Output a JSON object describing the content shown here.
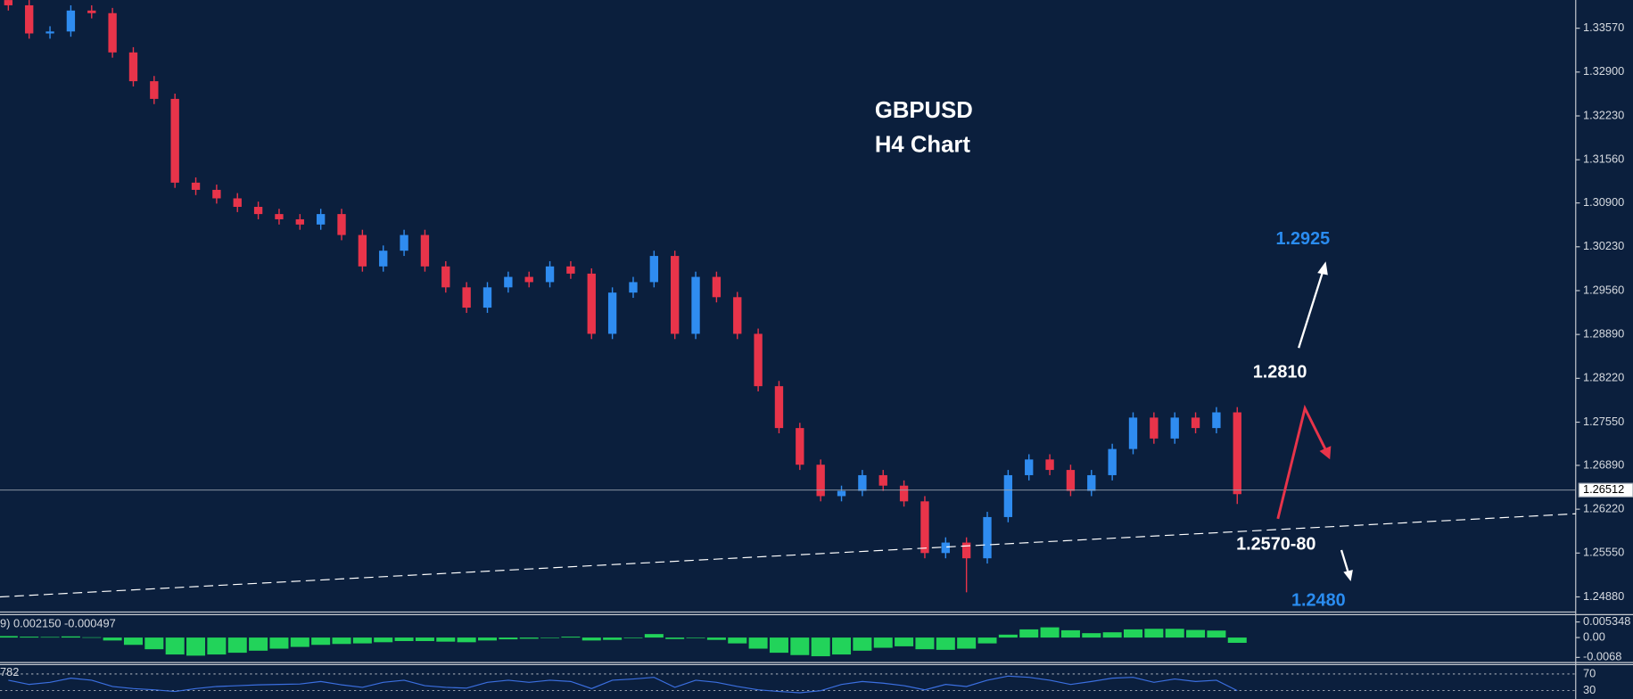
{
  "chart_data": {
    "type": "candlestick",
    "title": "GBPUSD",
    "subtitle": "H4 Chart",
    "up_color": "#2f8cf0",
    "down_color": "#e8344a",
    "open": [
      1.34,
      1.3392,
      1.3349,
      1.3352,
      1.3384,
      1.338,
      1.332,
      1.3276,
      1.3249,
      1.3121,
      1.311,
      1.3097,
      1.3084,
      1.3073,
      1.3065,
      1.3057,
      1.3073,
      1.3041,
      1.2993,
      1.3017,
      1.3041,
      1.2993,
      1.2961,
      1.293,
      1.2961,
      1.2977,
      1.2969,
      1.2993,
      1.2982,
      1.289,
      1.2953,
      1.2969,
      1.3009,
      1.289,
      1.2977,
      1.2946,
      1.289,
      1.281,
      1.2746,
      1.269,
      1.2642,
      1.265,
      1.2674,
      1.2658,
      1.2634,
      1.2555,
      1.2571,
      1.2547,
      1.261,
      1.2674,
      1.2698,
      1.2682,
      1.265,
      1.2674,
      1.2714,
      1.2762,
      1.273,
      1.2762,
      1.2746,
      1.277
    ],
    "high": [
      1.3408,
      1.34,
      1.336,
      1.3392,
      1.3392,
      1.3388,
      1.3328,
      1.3284,
      1.3257,
      1.3129,
      1.3118,
      1.3105,
      1.3092,
      1.3081,
      1.3073,
      1.3081,
      1.3081,
      1.3049,
      1.3025,
      1.3049,
      1.3049,
      1.3001,
      1.2969,
      1.2969,
      1.2985,
      1.2985,
      1.3001,
      1.3001,
      1.299,
      1.2961,
      1.2977,
      1.3017,
      1.3017,
      1.2985,
      1.2985,
      1.2954,
      1.2898,
      1.2818,
      1.2754,
      1.2698,
      1.2658,
      1.2682,
      1.2682,
      1.2666,
      1.2642,
      1.2579,
      1.2579,
      1.2618,
      1.2682,
      1.2706,
      1.2706,
      1.269,
      1.2682,
      1.2722,
      1.277,
      1.277,
      1.277,
      1.277,
      1.2778,
      1.2778
    ],
    "low": [
      1.3384,
      1.3341,
      1.3341,
      1.3344,
      1.3372,
      1.3312,
      1.3268,
      1.3241,
      1.3113,
      1.3102,
      1.3089,
      1.3076,
      1.3065,
      1.3057,
      1.3049,
      1.3049,
      1.3033,
      1.2985,
      1.2985,
      1.3009,
      1.2985,
      1.2953,
      1.2922,
      1.2922,
      1.2953,
      1.2961,
      1.2961,
      1.2974,
      1.2882,
      1.2882,
      1.2945,
      1.2961,
      1.2882,
      1.2882,
      1.2938,
      1.2882,
      1.2802,
      1.2738,
      1.2682,
      1.2634,
      1.2634,
      1.2642,
      1.265,
      1.2626,
      1.2547,
      1.2547,
      1.2495,
      1.2539,
      1.2602,
      1.2666,
      1.2674,
      1.2642,
      1.2642,
      1.2666,
      1.2706,
      1.2722,
      1.2722,
      1.2738,
      1.2738,
      1.263
    ],
    "close": [
      1.3392,
      1.3349,
      1.3352,
      1.3384,
      1.338,
      1.332,
      1.3276,
      1.3249,
      1.3121,
      1.311,
      1.3097,
      1.3084,
      1.3073,
      1.3065,
      1.3057,
      1.3073,
      1.3041,
      1.2993,
      1.3017,
      1.3041,
      1.2993,
      1.2961,
      1.293,
      1.2961,
      1.2977,
      1.2969,
      1.2993,
      1.2982,
      1.289,
      1.2953,
      1.2969,
      1.3009,
      1.289,
      1.2977,
      1.2946,
      1.289,
      1.281,
      1.2746,
      1.269,
      1.2642,
      1.265,
      1.2674,
      1.2658,
      1.2634,
      1.2555,
      1.2571,
      1.2547,
      1.261,
      1.2674,
      1.2698,
      1.2682,
      1.265,
      1.2674,
      1.2714,
      1.2762,
      1.273,
      1.2762,
      1.2746,
      1.277,
      1.2645
    ],
    "ylim": [
      1.24657,
      1.34001
    ],
    "yticks": [
      {
        "value": 1.3357,
        "label": "1.33570"
      },
      {
        "value": 1.329,
        "label": "1.32900"
      },
      {
        "value": 1.3223,
        "label": "1.32230"
      },
      {
        "value": 1.3156,
        "label": "1.31560"
      },
      {
        "value": 1.309,
        "label": "1.30900"
      },
      {
        "value": 1.3023,
        "label": "1.30230"
      },
      {
        "value": 1.2956,
        "label": "1.29560"
      },
      {
        "value": 1.2889,
        "label": "1.28890"
      },
      {
        "value": 1.2822,
        "label": "1.28220"
      },
      {
        "value": 1.2755,
        "label": "1.27550"
      },
      {
        "value": 1.2689,
        "label": "1.26890"
      },
      {
        "value": 1.2622,
        "label": "1.26220"
      },
      {
        "value": 1.2555,
        "label": "1.25550"
      },
      {
        "value": 1.2488,
        "label": "1.24880"
      }
    ],
    "current_price": {
      "value": 1.26512,
      "label": "1.26512"
    },
    "trendline": [
      1.2488,
      1.2615
    ],
    "annotations": [
      {
        "text": "1.2925",
        "color": "#2a8cf0"
      },
      {
        "text": "1.2810",
        "color": "#ffffff"
      },
      {
        "text": "1.2570-80",
        "color": "#ffffff"
      },
      {
        "text": "1.2480",
        "color": "#2a8cf0"
      }
    ],
    "macd": {
      "label": "9) 0.002150 -0.000497",
      "color": "#22d35a",
      "values": [
        0.0005,
        0.0003,
        0.0002,
        0.0004,
        0.0001,
        -0.001,
        -0.0025,
        -0.004,
        -0.0058,
        -0.0062,
        -0.0058,
        -0.0052,
        -0.0045,
        -0.0038,
        -0.0032,
        -0.0025,
        -0.0022,
        -0.002,
        -0.0016,
        -0.0012,
        -0.0012,
        -0.0014,
        -0.0016,
        -0.001,
        -0.0006,
        -0.0004,
        0,
        0.0003,
        -0.001,
        -0.0008,
        -0.0002,
        0.0012,
        -0.0005,
        -0.0002,
        -0.0008,
        -0.002,
        -0.0038,
        -0.0052,
        -0.006,
        -0.0064,
        -0.0058,
        -0.0045,
        -0.0035,
        -0.003,
        -0.004,
        -0.0042,
        -0.0038,
        -0.002,
        0.001,
        0.0028,
        0.0035,
        0.0025,
        0.0015,
        0.0018,
        0.0028,
        0.003,
        0.003,
        0.0026,
        0.0024,
        -0.0018
      ],
      "ylim": [
        -0.0082,
        0.0075
      ],
      "yticks": [
        0.005348,
        {
          "value": 0,
          "label": "0.00"
        },
        -0.0068
      ]
    },
    "rsi": {
      "label": "782",
      "color": "#3b6fe0",
      "values": [
        55,
        45,
        50,
        60,
        55,
        40,
        35,
        32,
        28,
        35,
        40,
        42,
        44,
        45,
        46,
        52,
        44,
        38,
        50,
        55,
        42,
        38,
        36,
        50,
        55,
        50,
        55,
        52,
        35,
        55,
        58,
        62,
        38,
        55,
        50,
        40,
        32,
        28,
        25,
        30,
        45,
        52,
        48,
        42,
        32,
        45,
        40,
        55,
        65,
        62,
        55,
        45,
        52,
        60,
        62,
        50,
        58,
        52,
        55,
        30
      ],
      "ylim": [
        10,
        92.5
      ],
      "yticks": [
        70,
        30
      ]
    }
  }
}
